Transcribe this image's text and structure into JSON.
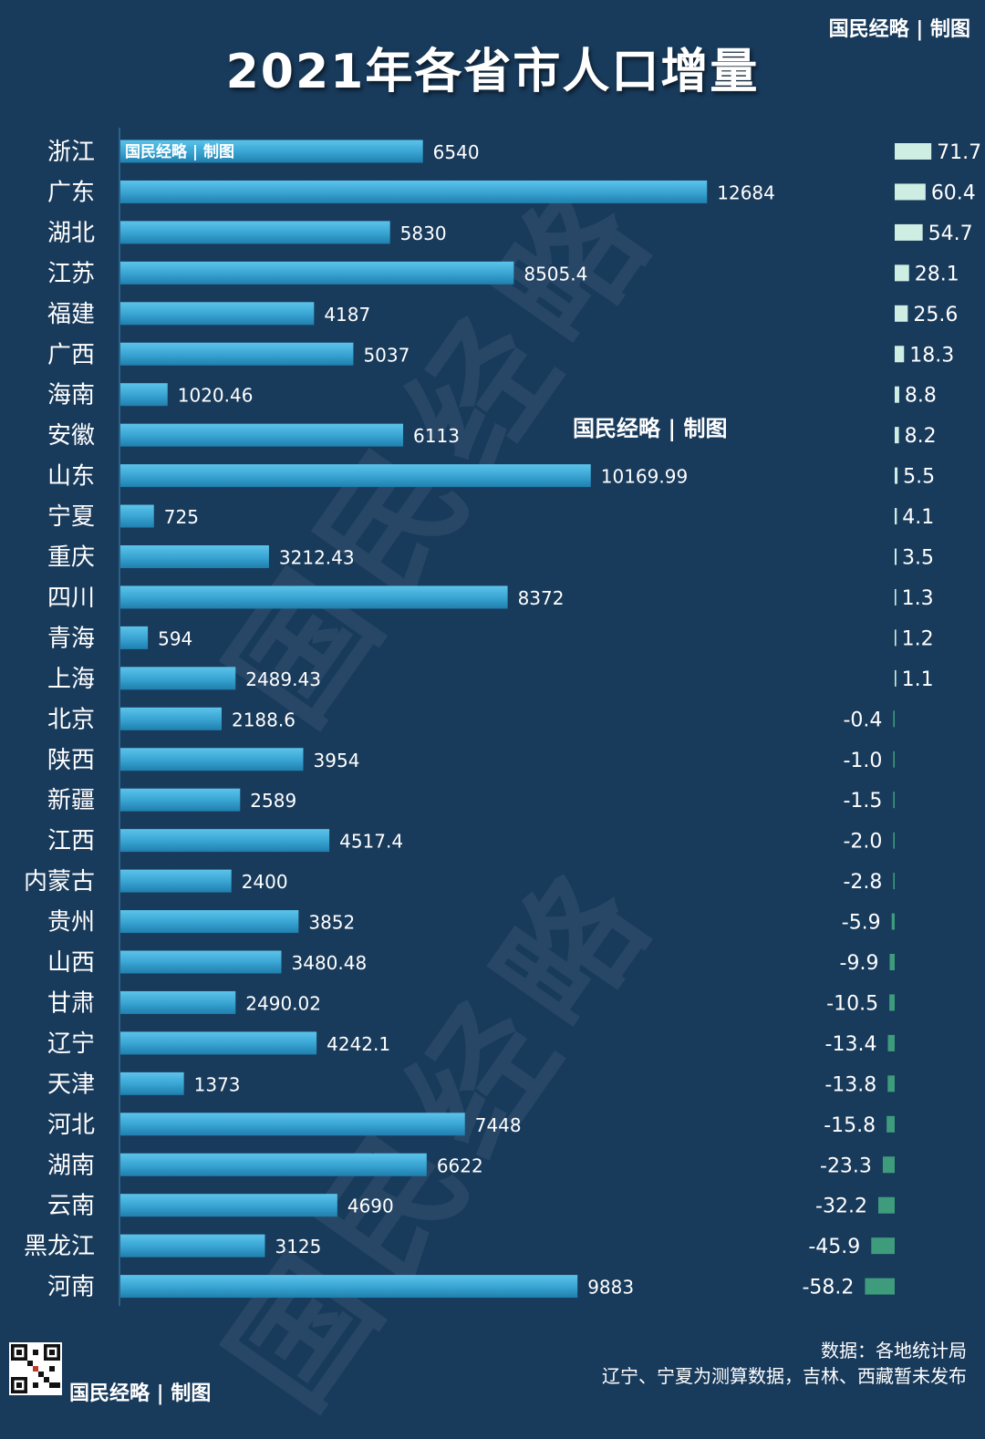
{
  "title": "2021年各省市人口增量",
  "brand": "国民经略 | 制图",
  "watermark_text": "国民经略",
  "footer": {
    "source": "数据：各地统计局",
    "note": "辽宁、宁夏为测算数据，吉林、西藏暂未发布"
  },
  "colors": {
    "background": "#183a5b",
    "bar": "#3aa6d4",
    "positive_bar": "#cfeee3",
    "negative_bar": "#3e9b7c"
  },
  "chart_data": {
    "type": "bar",
    "orientation": "horizontal",
    "title": "2021年各省市人口增量",
    "categories": [
      "浙江",
      "广东",
      "湖北",
      "江苏",
      "福建",
      "广西",
      "海南",
      "安徽",
      "山东",
      "宁夏",
      "重庆",
      "四川",
      "青海",
      "上海",
      "北京",
      "陕西",
      "新疆",
      "江西",
      "内蒙古",
      "贵州",
      "山西",
      "甘肃",
      "辽宁",
      "天津",
      "河北",
      "湖南",
      "云南",
      "黑龙江",
      "河南"
    ],
    "series": [
      {
        "values": [
          6540,
          12684,
          5830,
          8505.4,
          4187,
          5037,
          1020.46,
          6113,
          10169.99,
          725,
          3212.43,
          8372,
          594,
          2489.43,
          2188.6,
          3954,
          2589,
          4517.4,
          2400,
          3852,
          3480.48,
          2490.02,
          4242.1,
          1373,
          7448,
          6622,
          4690,
          3125,
          9883
        ],
        "labels": [
          "6540",
          "12684",
          "5830",
          "8505.4",
          "4187",
          "5037",
          "1020.46",
          "6113",
          "10169.99",
          "725",
          "3212.43",
          "8372",
          "594",
          "2489.43",
          "2188.6",
          "3954",
          "2589",
          "4517.4",
          "2400",
          "3852",
          "3480.48",
          "2490.02",
          "4242.1",
          "1373",
          "7448",
          "6622",
          "4690",
          "3125",
          "9883"
        ]
      },
      {
        "values": [
          71.7,
          60.4,
          54.7,
          28.1,
          25.6,
          18.3,
          8.8,
          8.2,
          5.5,
          4.1,
          3.5,
          1.3,
          1.2,
          1.1,
          -0.4,
          -1.0,
          -1.5,
          -2.0,
          -2.8,
          -5.9,
          -9.9,
          -10.5,
          -13.4,
          -13.8,
          -15.8,
          -23.3,
          -32.2,
          -45.9,
          -58.2
        ],
        "labels": [
          "71.7",
          "60.4",
          "54.7",
          "28.1",
          "25.6",
          "18.3",
          "8.8",
          "8.2",
          "5.5",
          "4.1",
          "3.5",
          "1.3",
          "1.2",
          "1.1",
          "-0.4",
          "-1.0",
          "-1.5",
          "-2.0",
          "-2.8",
          "-5.9",
          "-9.9",
          "-10.5",
          "-13.4",
          "-13.8",
          "-15.8",
          "-23.3",
          "-32.2",
          "-45.9",
          "-58.2"
        ]
      }
    ],
    "xlim": [
      0,
      14000
    ],
    "increment_range": [
      -58.2,
      71.7
    ],
    "grid": false,
    "legend": "none"
  }
}
